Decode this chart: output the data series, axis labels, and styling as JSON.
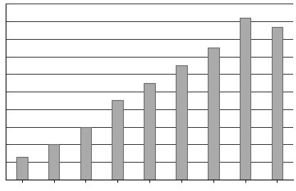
{
  "values": [
    13,
    20,
    30,
    45,
    55,
    65,
    75,
    92,
    87
  ],
  "bar_color": "#aaaaaa",
  "bar_edge_color": "#666666",
  "background_color": "#ffffff",
  "ylim": [
    0,
    100
  ],
  "n_gridlines": 10,
  "grid_color": "#000000",
  "grid_linewidth": 0.6,
  "bar_width": 0.35,
  "spine_color": "#000000",
  "spine_linewidth": 0.8
}
